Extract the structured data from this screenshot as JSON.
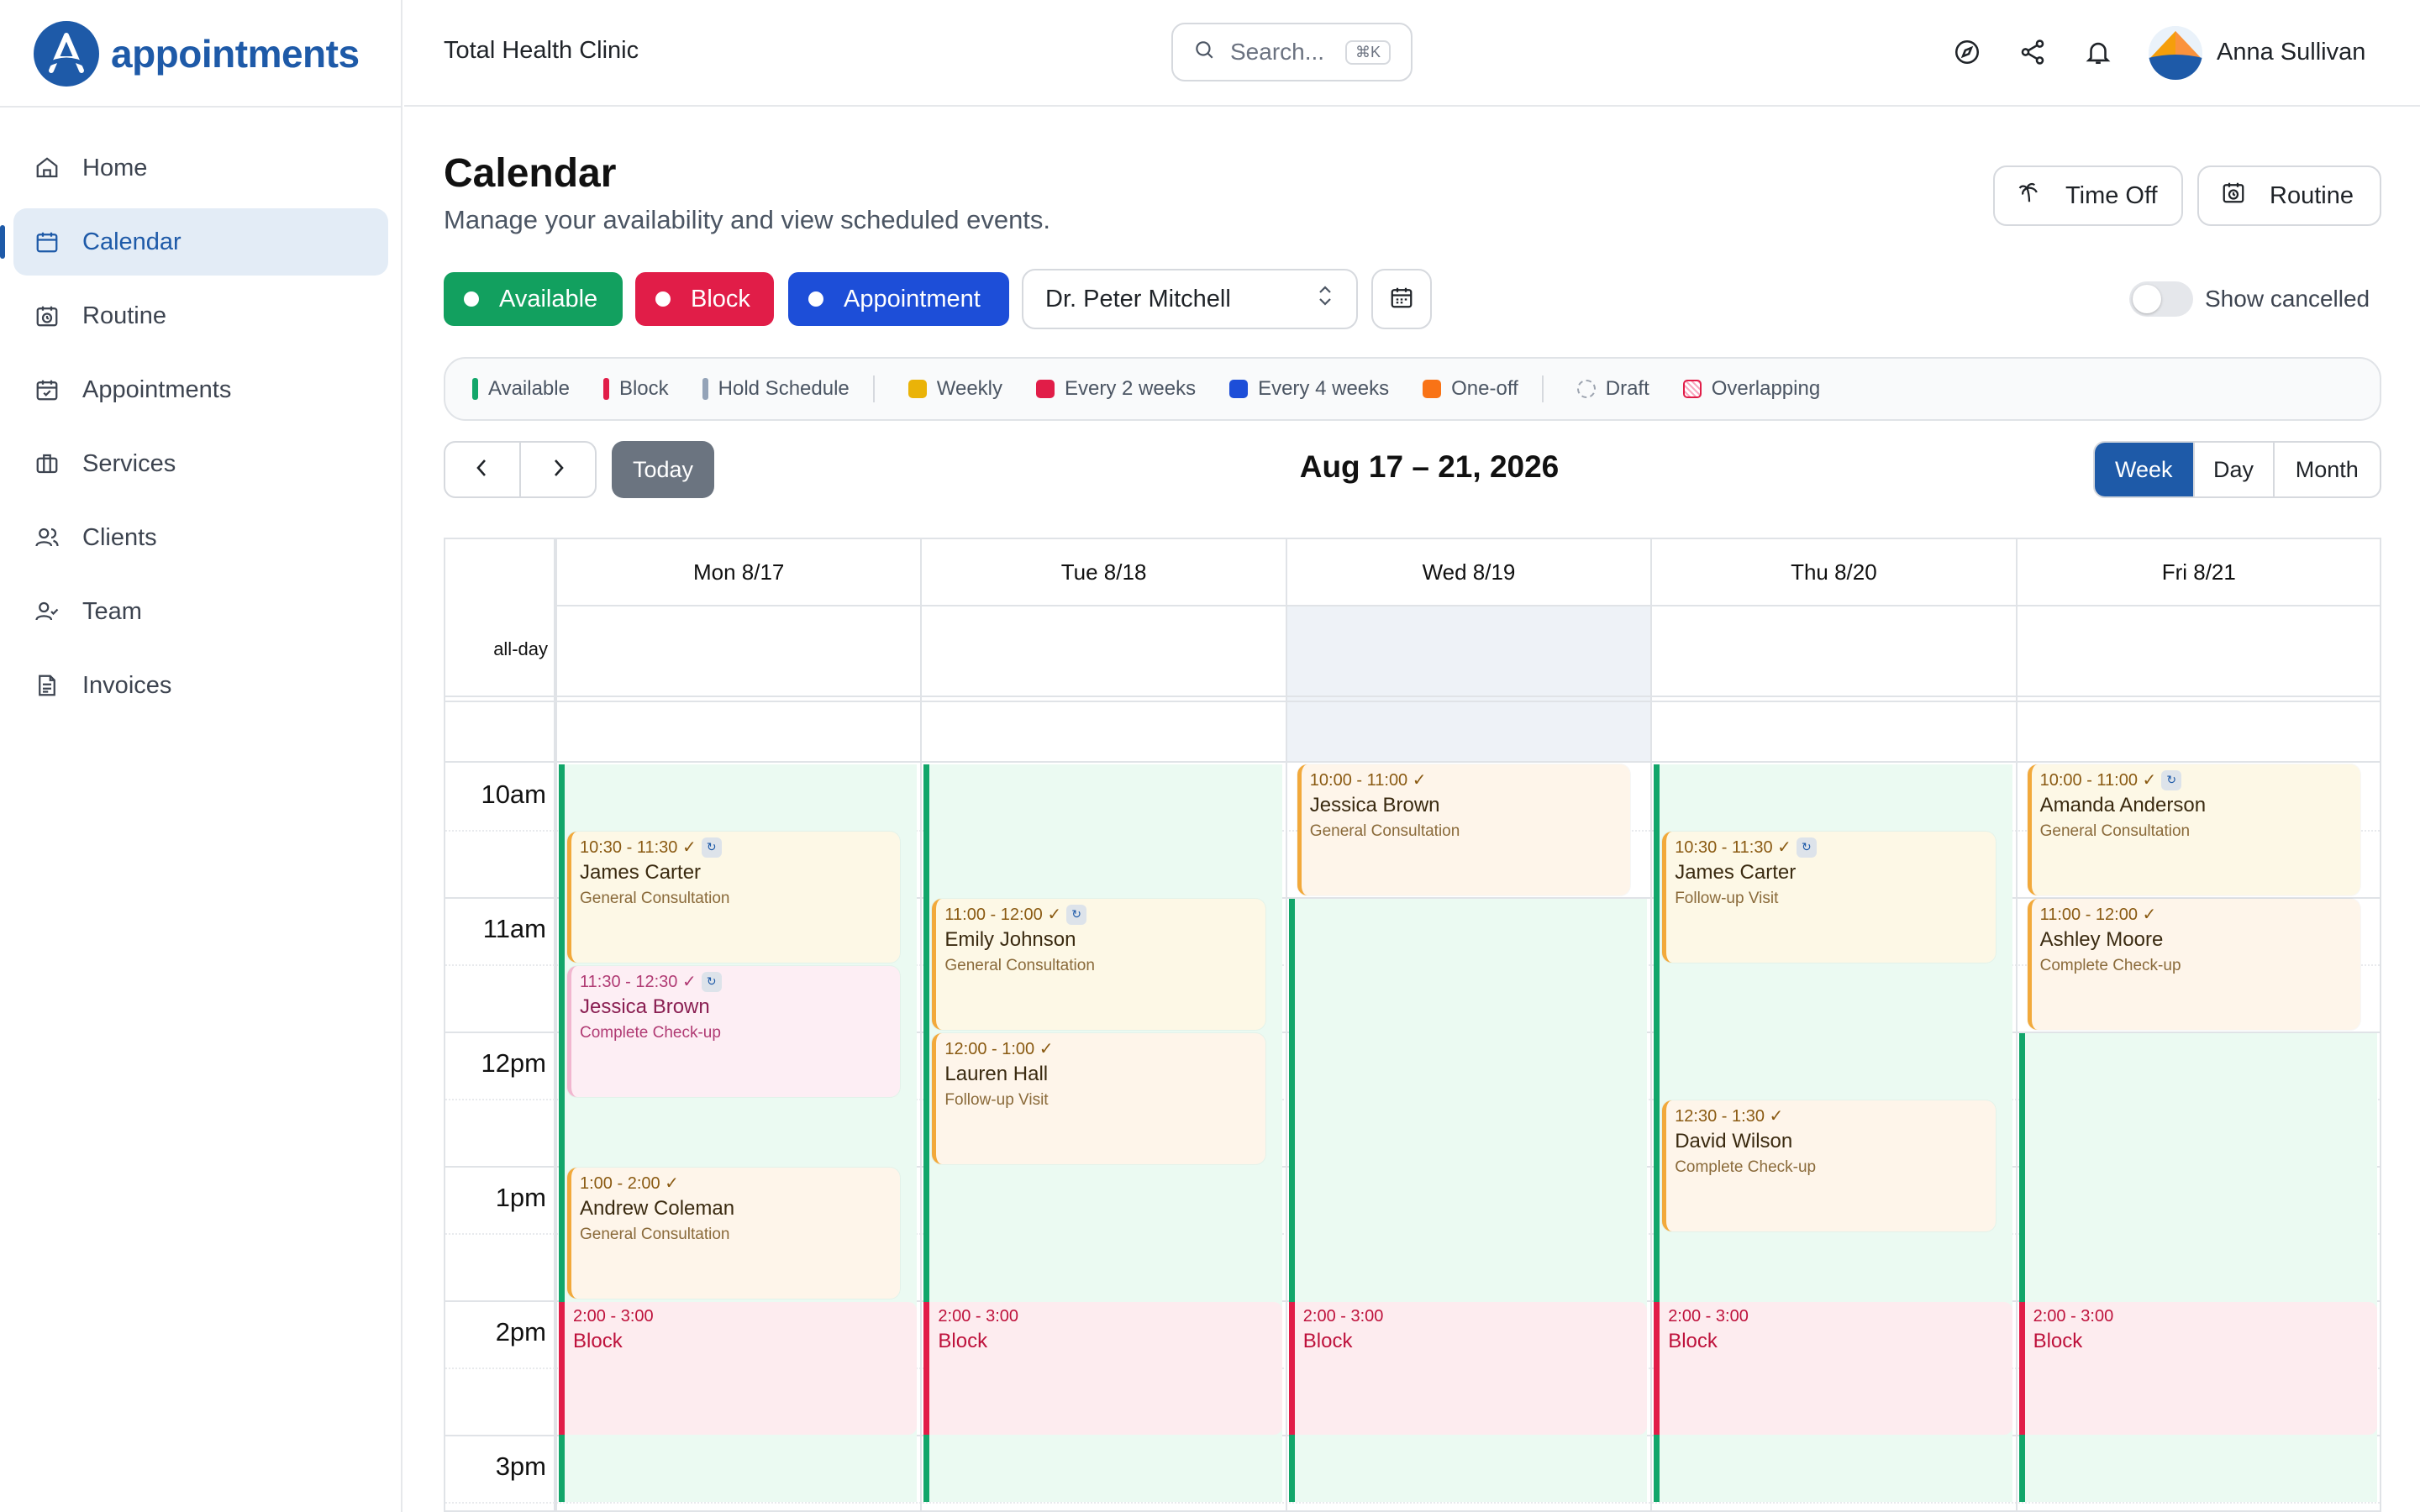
{
  "app": {
    "name": "appointments"
  },
  "sidebar": {
    "items": [
      {
        "label": "Home",
        "icon": "home-icon"
      },
      {
        "label": "Calendar",
        "icon": "calendar-icon",
        "active": true
      },
      {
        "label": "Routine",
        "icon": "routine-icon"
      },
      {
        "label": "Appointments",
        "icon": "calendar-check-icon"
      },
      {
        "label": "Services",
        "icon": "briefcase-icon"
      },
      {
        "label": "Clients",
        "icon": "users-icon"
      },
      {
        "label": "Team",
        "icon": "team-icon"
      },
      {
        "label": "Invoices",
        "icon": "invoice-icon"
      }
    ]
  },
  "header": {
    "clinic": "Total Health Clinic",
    "search_placeholder": "Search...",
    "search_shortcut": "⌘K",
    "user_name": "Anna Sullivan"
  },
  "page": {
    "title": "Calendar",
    "subtitle": "Manage your availability and view scheduled events.",
    "time_off_label": "Time Off",
    "routine_label": "Routine"
  },
  "filters": {
    "available": "Available",
    "block": "Block",
    "appointment": "Appointment",
    "provider": "Dr. Peter Mitchell",
    "show_cancelled": "Show cancelled",
    "show_cancelled_on": false
  },
  "legend": [
    {
      "label": "Available",
      "color": "#12a66a",
      "kind": "bar"
    },
    {
      "label": "Block",
      "color": "#e11d48",
      "kind": "bar"
    },
    {
      "label": "Hold Schedule",
      "color": "#94a3b8",
      "kind": "bar"
    },
    {
      "label": "Weekly",
      "color": "#eab308",
      "kind": "sq"
    },
    {
      "label": "Every 2 weeks",
      "color": "#e11d48",
      "kind": "sq"
    },
    {
      "label": "Every 4 weeks",
      "color": "#1d4ed8",
      "kind": "sq"
    },
    {
      "label": "One-off",
      "color": "#f97316",
      "kind": "sq"
    },
    {
      "label": "Draft",
      "color": "#9ca3af",
      "kind": "dashed"
    },
    {
      "label": "Overlapping",
      "color": "#e11d48",
      "kind": "hatched"
    }
  ],
  "calendar": {
    "today_label": "Today",
    "range": "Aug 17 – 21, 2026",
    "views": [
      "Week",
      "Day",
      "Month"
    ],
    "active_view": "Week",
    "allday_label": "all-day",
    "days": [
      "Mon 8/17",
      "Tue 8/18",
      "Wed 8/19",
      "Thu 8/20",
      "Fri 8/21"
    ],
    "highlight_day": 2,
    "hours": [
      "10am",
      "11am",
      "12pm",
      "1pm",
      "2pm",
      "3pm"
    ],
    "availability": [
      {
        "day": 0,
        "start": 10,
        "end": 15.5
      },
      {
        "day": 1,
        "start": 10,
        "end": 15.5
      },
      {
        "day": 2,
        "start": 11,
        "end": 15.5
      },
      {
        "day": 3,
        "start": 10,
        "end": 15.5
      },
      {
        "day": 4,
        "start": 12,
        "end": 15.5
      }
    ],
    "blocks": [
      {
        "day": 0,
        "start": 14,
        "end": 15,
        "time": "2:00 - 3:00",
        "label": "Block"
      },
      {
        "day": 1,
        "start": 14,
        "end": 15,
        "time": "2:00 - 3:00",
        "label": "Block"
      },
      {
        "day": 2,
        "start": 14,
        "end": 15,
        "time": "2:00 - 3:00",
        "label": "Block"
      },
      {
        "day": 3,
        "start": 14,
        "end": 15,
        "time": "2:00 - 3:00",
        "label": "Block"
      },
      {
        "day": 4,
        "start": 14,
        "end": 15,
        "time": "2:00 - 3:00",
        "label": "Block"
      }
    ],
    "appointments": [
      {
        "day": 0,
        "start": 10.5,
        "end": 11.5,
        "time": "10:30 - 11:30 ✓",
        "recurring": true,
        "name": "James Carter",
        "service": "General Consultation",
        "bg": "#fdf8e6",
        "style": "amber"
      },
      {
        "day": 0,
        "start": 11.5,
        "end": 12.5,
        "time": "11:30 - 12:30 ✓",
        "recurring": true,
        "name": "Jessica Brown",
        "service": "Complete Check-up",
        "bg": "#fdeef4",
        "style": "pink"
      },
      {
        "day": 0,
        "start": 13,
        "end": 14,
        "time": "1:00 - 2:00 ✓",
        "recurring": false,
        "name": "Andrew Coleman",
        "service": "General Consultation",
        "bg": "#fef5ea",
        "style": "amber"
      },
      {
        "day": 1,
        "start": 11,
        "end": 12,
        "time": "11:00 - 12:00 ✓",
        "recurring": true,
        "name": "Emily Johnson",
        "service": "General Consultation",
        "bg": "#fdf8e6",
        "style": "amber"
      },
      {
        "day": 1,
        "start": 12,
        "end": 13,
        "time": "12:00 - 1:00 ✓",
        "recurring": false,
        "name": "Lauren Hall",
        "service": "Follow-up Visit",
        "bg": "#fef5ea",
        "style": "amber"
      },
      {
        "day": 2,
        "start": 10,
        "end": 11,
        "time": "10:00 - 11:00 ✓",
        "recurring": false,
        "name": "Jessica Brown",
        "service": "General Consultation",
        "bg": "#fef5ea",
        "style": "amber"
      },
      {
        "day": 3,
        "start": 10.5,
        "end": 11.5,
        "time": "10:30 - 11:30 ✓",
        "recurring": true,
        "name": "James Carter",
        "service": "Follow-up Visit",
        "bg": "#fdf8e6",
        "style": "amber"
      },
      {
        "day": 3,
        "start": 12.5,
        "end": 13.5,
        "time": "12:30 - 1:30 ✓",
        "recurring": false,
        "name": "David Wilson",
        "service": "Complete Check-up",
        "bg": "#fef5ea",
        "style": "amber"
      },
      {
        "day": 4,
        "start": 10,
        "end": 11,
        "time": "10:00 - 11:00 ✓",
        "recurring": true,
        "name": "Amanda Anderson",
        "service": "General Consultation",
        "bg": "#fdf8e6",
        "style": "amber"
      },
      {
        "day": 4,
        "start": 11,
        "end": 12,
        "time": "11:00 - 12:00 ✓",
        "recurring": false,
        "name": "Ashley Moore",
        "service": "Complete Check-up",
        "bg": "#fef5ea",
        "style": "amber"
      }
    ]
  }
}
